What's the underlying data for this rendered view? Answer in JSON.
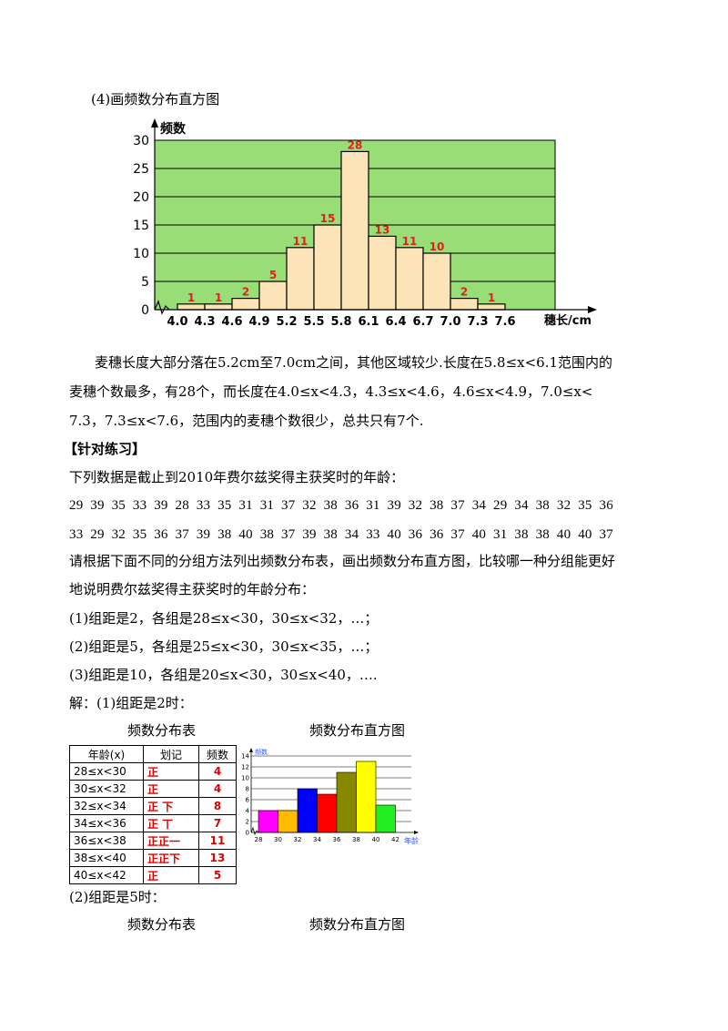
{
  "heading_4": "(4)画频数分布直方图",
  "chart_data": [
    {
      "type": "bar",
      "ylabel": "频数",
      "xlabel": "穗长/cm",
      "ylim": [
        0,
        30
      ],
      "yticks": [
        "0",
        "5",
        "10",
        "15",
        "20",
        "25",
        "30"
      ],
      "xticks": [
        "4.0",
        "4.3",
        "4.6",
        "4.9",
        "5.2",
        "5.5",
        "5.8",
        "6.1",
        "6.4",
        "6.7",
        "7.0",
        "7.3",
        "7.6"
      ],
      "values": [
        1,
        1,
        2,
        5,
        11,
        15,
        28,
        13,
        11,
        10,
        2,
        1
      ],
      "labels": [
        "1",
        "1",
        "2",
        "5",
        "11",
        "15",
        "28",
        "13",
        "11",
        "10",
        "2",
        "1"
      ],
      "background": "#99dd77",
      "bar_color": "#fde4b8",
      "label_color": "#e02020",
      "grid": true
    },
    {
      "type": "bar",
      "ylabel": "频数",
      "xlabel": "年龄",
      "ylim": [
        0,
        14
      ],
      "yticks": [
        "0",
        "2",
        "4",
        "6",
        "8",
        "10",
        "12",
        "14"
      ],
      "xticks": [
        "28",
        "30",
        "32",
        "34",
        "36",
        "38",
        "40",
        "42"
      ],
      "values": [
        4,
        4,
        8,
        7,
        11,
        13,
        5
      ],
      "colors": [
        "#ff00ff",
        "#ffbb00",
        "#0000ff",
        "#ff0000",
        "#888800",
        "#ffff00",
        "#22ee22"
      ],
      "grid": true
    }
  ],
  "paragraph": {
    "line1": "麦穗长度大部分落在5.2cm至7.0cm之间，其他区域较少.长度在5.8≤x<6.1范围内的",
    "line2": "麦穗个数最多，有28个，而长度在4.0≤x<4.3，4.3≤x<4.6，4.6≤x<4.9，7.0≤x<",
    "line3": "7.3，7.3≤x<7.6，范围内的麦穗个数很少，总共只有7个."
  },
  "section_title": "【针对练习】",
  "intro": "下列数据是截止到2010年费尔兹奖得主获奖时的年龄：",
  "data_row1": "29  39  35  33  39  28  33  35  31  31  37  32  38  36  31  39  32  38  37  34  29  34  38  32  35  36",
  "data_row2": "33  29  32  35  36  37  39  38  40  38  37  39  38  34  33  40  36  36  37  40  31  38  38  40  40  37",
  "request1": "请根据下面不同的分组方法列出频数分布表，画出频数分布直方图，比较哪一种分组能更好",
  "request2": "地说明费尔兹奖得主获奖时的年龄分布：",
  "item1": "(1)组距是2，各组是28≤x<30，30≤x<32，…；",
  "item2": "(2)组距是5，各组是25≤x<30，30≤x<35，…；",
  "item3": "(3)组距是10，各组是20≤x<30，30≤x<40，….",
  "solution1": "解：(1)组距是2时：",
  "table_caption": "频数分布表",
  "hist_caption": "频数分布直方图",
  "freq_table": {
    "headers": [
      "年龄(x)",
      "划记",
      "频数"
    ],
    "rows": [
      [
        "28≤x<30",
        "正",
        "4"
      ],
      [
        "30≤x<32",
        "正",
        "4"
      ],
      [
        "32≤x<34",
        "正 下",
        "8"
      ],
      [
        "34≤x<36",
        "正 丅",
        "7"
      ],
      [
        "36≤x<38",
        "正正一",
        "11"
      ],
      [
        "38≤x<40",
        "正正下",
        "13"
      ],
      [
        "40≤x<42",
        "正",
        "5"
      ]
    ]
  },
  "solution2": "(2)组距是5时：",
  "table_caption2": "频数分布表",
  "hist_caption2": "频数分布直方图"
}
